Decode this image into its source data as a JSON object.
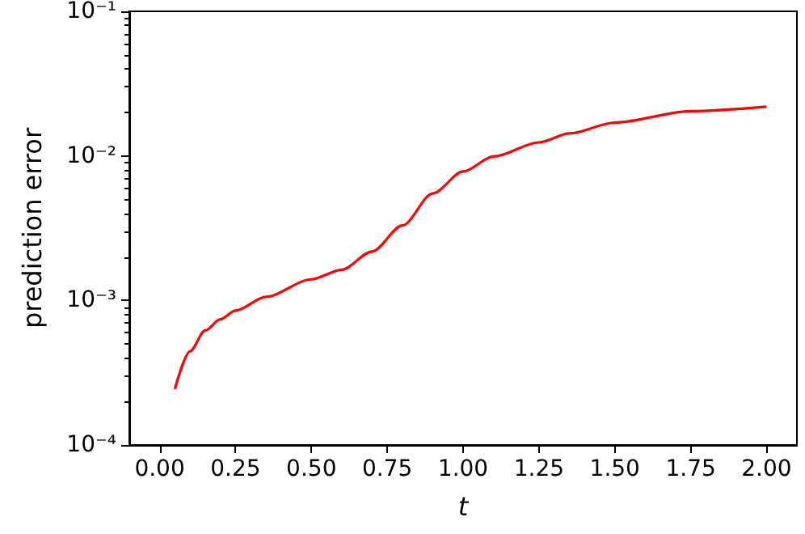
{
  "chart_data": {
    "type": "line",
    "xlabel": "t",
    "ylabel": "prediction error",
    "log": "y",
    "grid": false,
    "marker": "none",
    "line_style": "solid",
    "xlim": [
      -0.1,
      2.1
    ],
    "xticks": [
      {
        "value": 0,
        "label": "0.00"
      },
      {
        "value": 0.25,
        "label": "0.25"
      },
      {
        "value": 0.5,
        "label": "0.50"
      },
      {
        "value": 0.75,
        "label": "0.75"
      },
      {
        "value": 1,
        "label": "1.00"
      },
      {
        "value": 1.25,
        "label": "1.25"
      },
      {
        "value": 1.5,
        "label": "1.50"
      },
      {
        "value": 1.75,
        "label": "1.75"
      },
      {
        "value": 2,
        "label": "2.00"
      }
    ],
    "ylim": [
      0.0001,
      0.1
    ],
    "yticks": [
      {
        "value": 0.0001,
        "label": "10⁻⁴"
      },
      {
        "value": 0.001,
        "label": "10⁻³"
      },
      {
        "value": 0.01,
        "label": "10⁻²"
      },
      {
        "value": 0.1,
        "label": "10⁻¹"
      }
    ],
    "x": [
      0.05,
      0.1,
      0.15,
      0.2,
      0.25,
      0.35,
      0.5,
      0.6,
      0.7,
      0.8,
      0.9,
      1.0,
      1.1,
      1.25,
      1.35,
      1.5,
      1.75,
      2.0
    ],
    "series": [
      {
        "color": "#ff0000",
        "values": [
          0.000244,
          0.000445,
          0.00062,
          0.00074,
          0.00085,
          0.00106,
          0.0014,
          0.00163,
          0.00218,
          0.0033,
          0.0055,
          0.0078,
          0.0099,
          0.0124,
          0.0143,
          0.017,
          0.0204,
          0.0219
        ]
      }
    ]
  }
}
